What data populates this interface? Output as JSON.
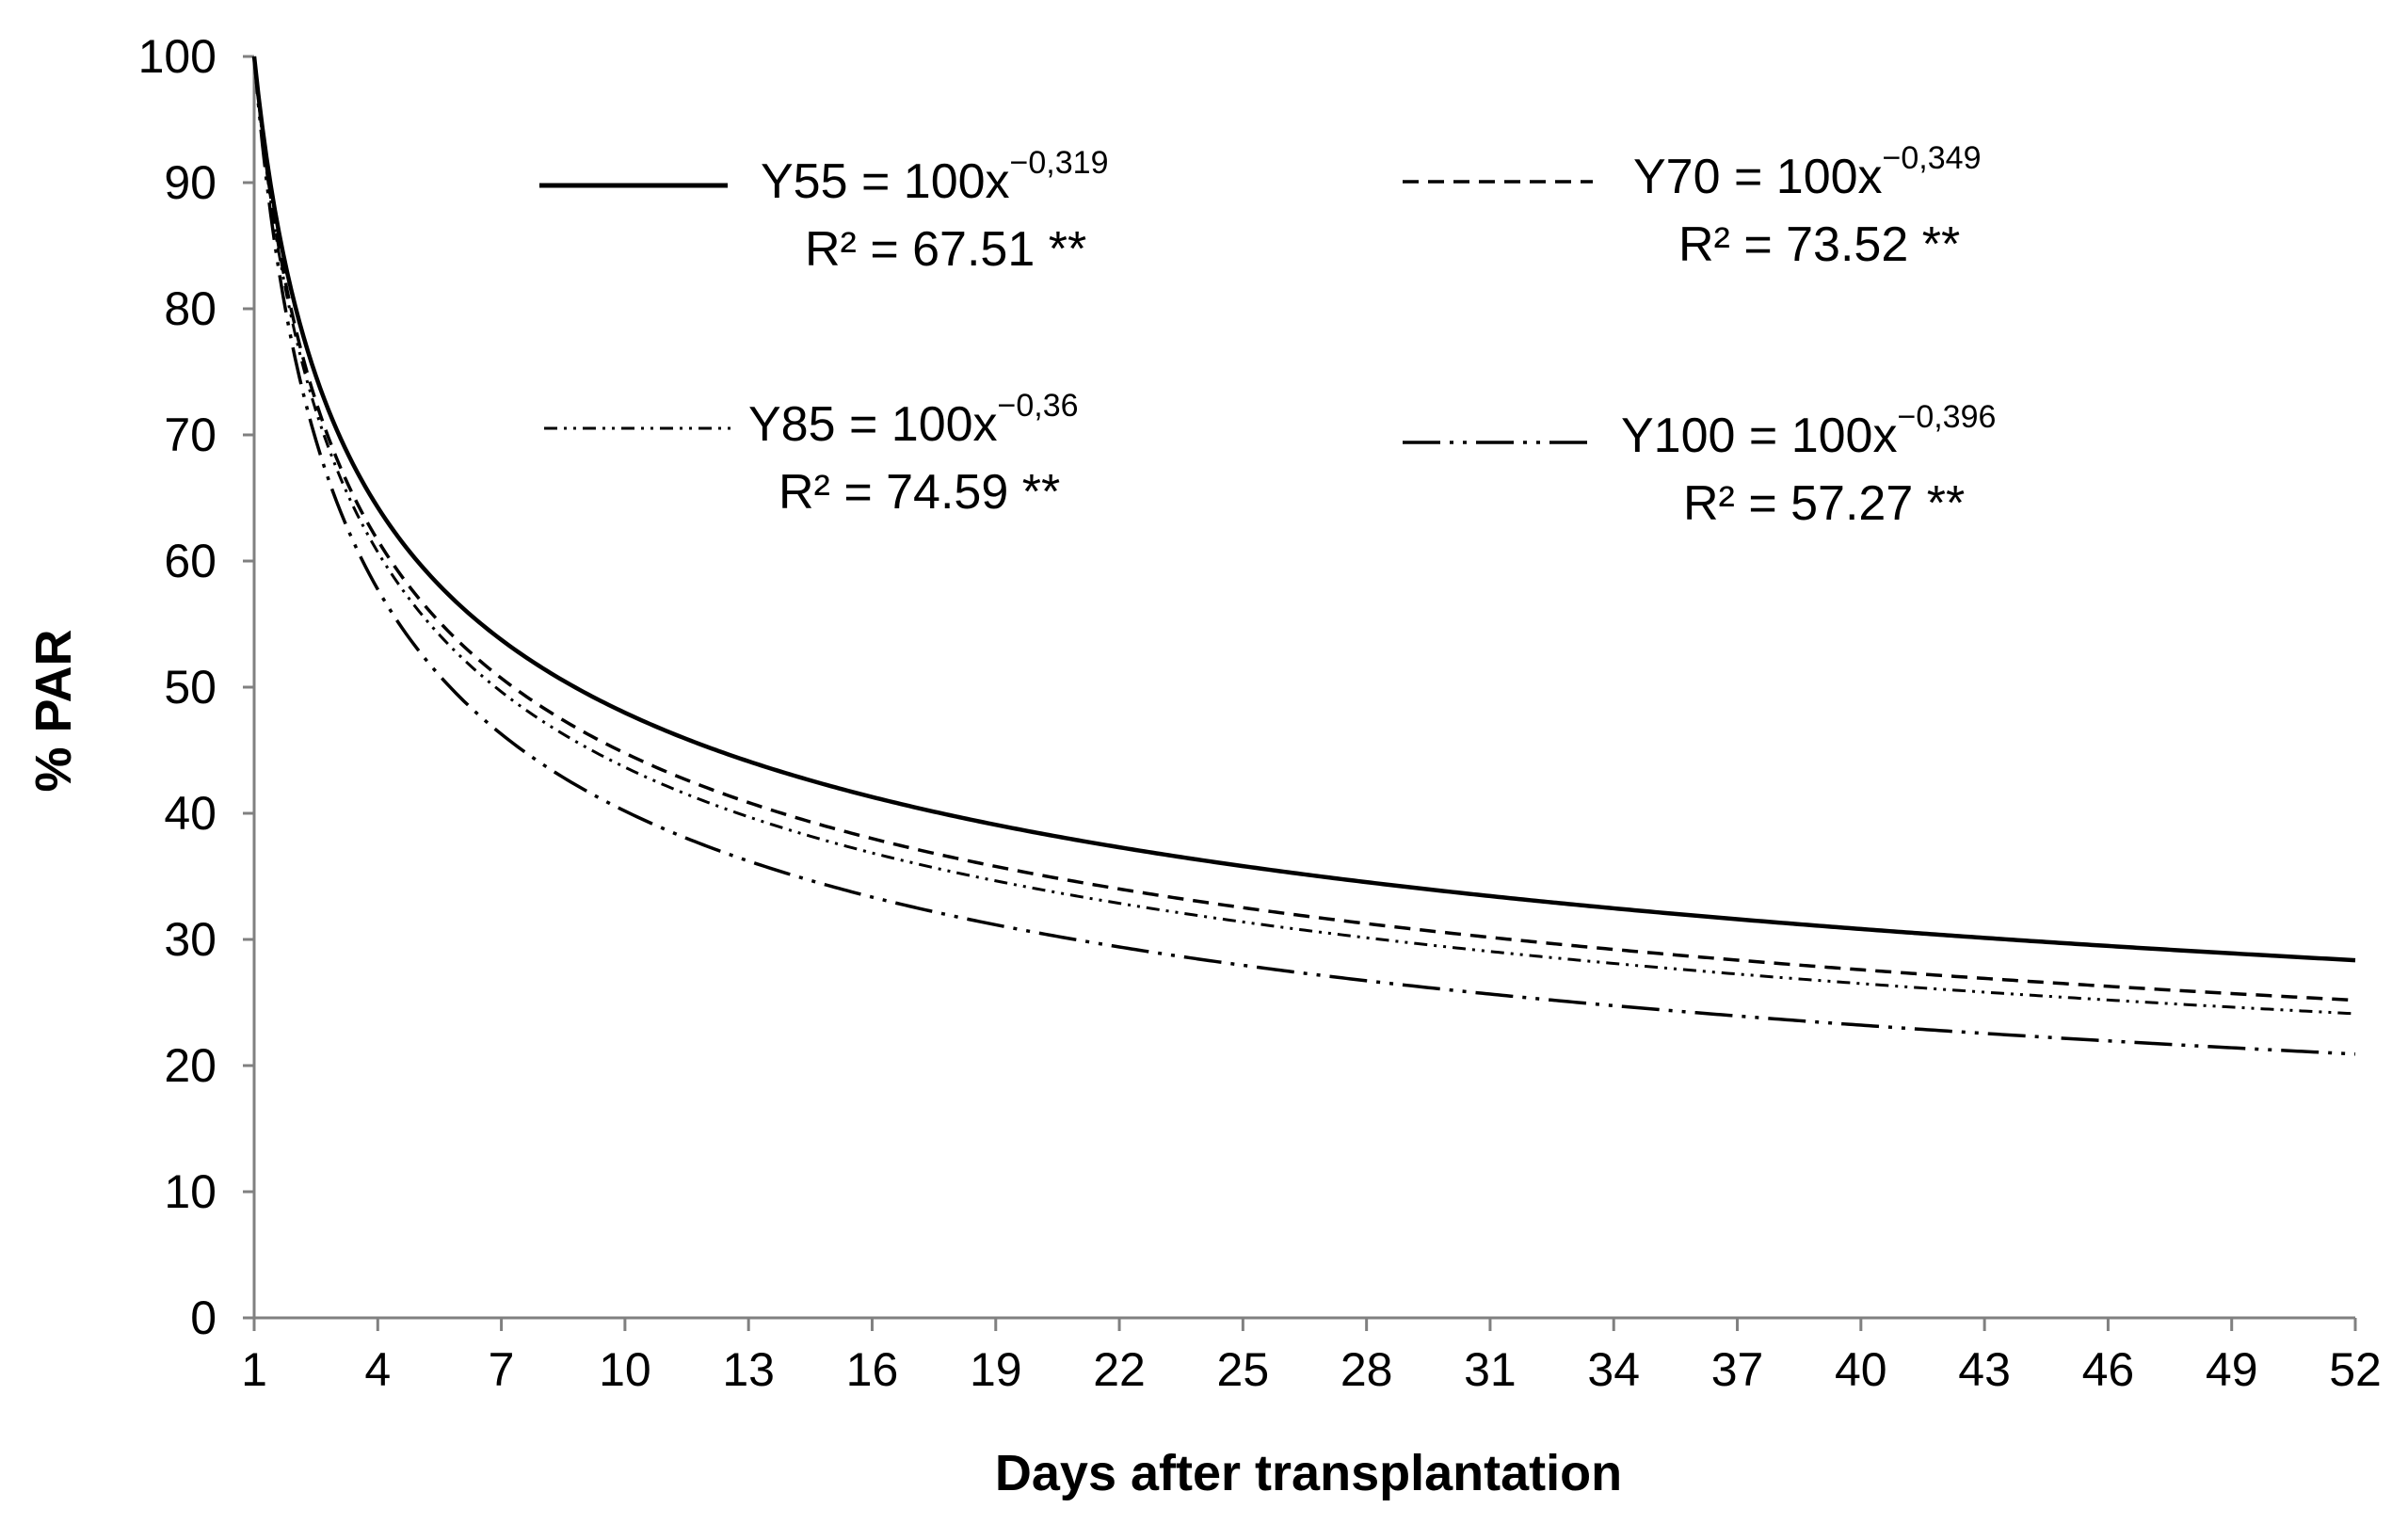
{
  "chart_data": {
    "type": "line",
    "title": "",
    "xlabel": "Days after transplantation",
    "ylabel": "% PAR",
    "xlim": [
      1,
      52
    ],
    "ylim": [
      0,
      100
    ],
    "x_ticks": [
      "1",
      "4",
      "7",
      "10",
      "13",
      "16",
      "19",
      "22",
      "25",
      "28",
      "31",
      "34",
      "37",
      "40",
      "43",
      "46",
      "49",
      "52"
    ],
    "y_ticks": [
      "0",
      "10",
      "20",
      "30",
      "40",
      "50",
      "60",
      "70",
      "80",
      "90",
      "100"
    ],
    "grid": false,
    "legend_position": "top",
    "series": [
      {
        "name": "Y55",
        "coefficient": 100,
        "exponent": -0.319,
        "exponent_label": "−0,319",
        "equation_prefix": "Y55 = 100x",
        "r2_label": "R² = 67.51 **",
        "style": "solid",
        "x": [
          1,
          4,
          7,
          10,
          13,
          16,
          19,
          22,
          25,
          28,
          31,
          34,
          37,
          40,
          43,
          46,
          49,
          52
        ],
        "values": [
          100,
          64.2,
          53.7,
          47.9,
          44.1,
          41.3,
          39.1,
          37.3,
          35.9,
          34.5,
          33.5,
          32.5,
          31.6,
          30.8,
          30.1,
          29.5,
          28.9,
          28.4
        ]
      },
      {
        "name": "Y70",
        "coefficient": 100,
        "exponent": -0.349,
        "exponent_label": "−0,349",
        "equation_prefix": "Y70 = 100x",
        "r2_label": "R² = 73.52 **",
        "style": "dashed",
        "x": [
          1,
          4,
          7,
          10,
          13,
          16,
          19,
          22,
          25,
          28,
          31,
          34,
          37,
          40,
          43,
          46,
          49,
          52
        ],
        "values": [
          100,
          61.6,
          50.7,
          44.8,
          40.9,
          38.0,
          35.8,
          34.0,
          32.5,
          31.2,
          30.1,
          29.2,
          28.3,
          27.6,
          26.9,
          26.3,
          25.7,
          25.2
        ]
      },
      {
        "name": "Y85",
        "coefficient": 100,
        "exponent": -0.36,
        "exponent_label": "−0,36",
        "equation_prefix": "Y85 = 100x",
        "r2_label": "R² = 74.59 **",
        "style": "dash-dot-dot-fine",
        "x": [
          1,
          4,
          7,
          10,
          13,
          16,
          19,
          22,
          25,
          28,
          31,
          34,
          37,
          40,
          43,
          46,
          49,
          52
        ],
        "values": [
          100,
          60.6,
          49.6,
          43.7,
          39.7,
          36.9,
          34.6,
          32.8,
          31.4,
          30.1,
          29.0,
          28.1,
          27.2,
          26.5,
          25.8,
          25.2,
          24.6,
          24.1
        ]
      },
      {
        "name": "Y100",
        "coefficient": 100,
        "exponent": -0.396,
        "exponent_label": "−0,396",
        "equation_prefix": "Y100 = 100x",
        "r2_label": "R² = 57.27 **",
        "style": "long-dash-dot-dot",
        "x": [
          1,
          4,
          7,
          10,
          13,
          16,
          19,
          22,
          25,
          28,
          31,
          34,
          37,
          40,
          43,
          46,
          49,
          52
        ],
        "values": [
          100,
          57.7,
          46.3,
          40.2,
          36.2,
          33.3,
          31.2,
          29.4,
          28.0,
          26.8,
          25.7,
          24.8,
          24.0,
          23.2,
          22.6,
          22.0,
          21.4,
          20.9
        ]
      }
    ]
  }
}
